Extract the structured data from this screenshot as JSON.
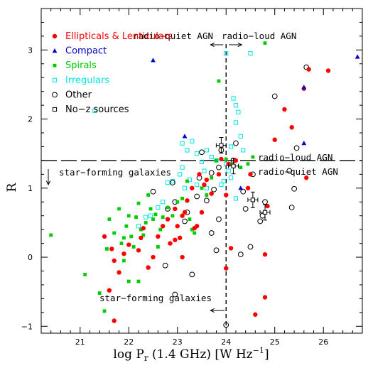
{
  "chart_data": {
    "type": "scatter",
    "title": "",
    "xlabel": "log P",
    "xlabel_sub": "r",
    "xlabel_rest": " (1.4 GHz) [W Hz",
    "xlabel_sup": "−1",
    "xlabel_end": "]",
    "ylabel": "R",
    "xlim": [
      20.2,
      26.8
    ],
    "ylim": [
      -1.1,
      3.6
    ],
    "xticks": [
      "21",
      "22",
      "23",
      "24",
      "25",
      "26"
    ],
    "yticks": [
      "−1",
      "0",
      "1",
      "2",
      "3"
    ],
    "grid": false,
    "legend_position": "top-left",
    "threshold_lines": {
      "x": 24.0,
      "y": 1.4
    },
    "annotations": {
      "top_left": "radio−quiet AGN",
      "top_right": "radio−loud AGN",
      "right_upper": "radio−loud AGN",
      "right_lower": "radio−quiet AGN",
      "left_middle": "star−forming galaxies",
      "bottom": "star−forming galaxies"
    },
    "series": [
      {
        "name": "Ellipticals & Lenticulars",
        "color": "#ff0000",
        "marker": "filled-circle",
        "points": [
          [
            25.7,
            2.72
          ],
          [
            26.1,
            2.7
          ],
          [
            25.6,
            2.44
          ],
          [
            25.2,
            2.14
          ],
          [
            25.35,
            1.88
          ],
          [
            25.0,
            1.7
          ],
          [
            25.65,
            1.15
          ],
          [
            24.5,
            1.2
          ],
          [
            24.45,
            1.0
          ],
          [
            24.2,
            1.4
          ],
          [
            24.05,
            1.35
          ],
          [
            23.9,
            1.42
          ],
          [
            23.85,
            1.2
          ],
          [
            24.0,
            0.9
          ],
          [
            24.85,
            0.74
          ],
          [
            24.8,
            0.04
          ],
          [
            24.8,
            -0.58
          ],
          [
            24.6,
            -0.83
          ],
          [
            24.1,
            0.13
          ],
          [
            24.0,
            -0.16
          ],
          [
            23.55,
            1.05
          ],
          [
            23.45,
            1.2
          ],
          [
            23.3,
            1.0
          ],
          [
            23.2,
            0.82
          ],
          [
            23.1,
            0.6
          ],
          [
            23.0,
            0.45
          ],
          [
            23.05,
            0.28
          ],
          [
            23.1,
            0.0
          ],
          [
            23.15,
            0.65
          ],
          [
            22.95,
            0.25
          ],
          [
            22.85,
            0.2
          ],
          [
            22.7,
            0.45
          ],
          [
            22.6,
            0.3
          ],
          [
            22.5,
            0.0
          ],
          [
            22.4,
            -0.15
          ],
          [
            22.3,
            0.42
          ],
          [
            22.25,
            0.28
          ],
          [
            22.2,
            0.1
          ],
          [
            22.0,
            0.18
          ],
          [
            21.9,
            0.05
          ],
          [
            21.8,
            -0.22
          ],
          [
            21.7,
            -0.05
          ],
          [
            21.6,
            -0.48
          ],
          [
            21.5,
            0.3
          ],
          [
            21.65,
            0.12
          ],
          [
            21.7,
            -0.92
          ],
          [
            22.95,
            0.7
          ],
          [
            23.4,
            0.45
          ],
          [
            23.35,
            0.42
          ],
          [
            23.5,
            0.65
          ],
          [
            23.7,
            0.92
          ],
          [
            23.6,
            1.12
          ],
          [
            22.8,
            0.55
          ]
        ]
      },
      {
        "name": "Compact",
        "color": "#0000cc",
        "marker": "filled-triangle",
        "points": [
          [
            22.5,
            2.85
          ],
          [
            26.7,
            2.9
          ],
          [
            25.6,
            2.46
          ],
          [
            25.6,
            1.65
          ],
          [
            23.15,
            1.75
          ],
          [
            24.3,
            1.0
          ]
        ]
      },
      {
        "name": "Spirals",
        "color": "#00cc00",
        "marker": "filled-square",
        "points": [
          [
            20.4,
            0.32
          ],
          [
            21.1,
            -0.25
          ],
          [
            21.4,
            -0.52
          ],
          [
            21.5,
            -0.78
          ],
          [
            21.55,
            0.12
          ],
          [
            21.6,
            0.55
          ],
          [
            21.7,
            0.35
          ],
          [
            21.8,
            0.7
          ],
          [
            21.85,
            0.2
          ],
          [
            21.9,
            -0.05
          ],
          [
            21.95,
            0.45
          ],
          [
            22.0,
            0.6
          ],
          [
            22.05,
            0.3
          ],
          [
            22.1,
            0.15
          ],
          [
            22.15,
            0.58
          ],
          [
            22.2,
            0.78
          ],
          [
            22.25,
            0.4
          ],
          [
            22.3,
            0.32
          ],
          [
            22.35,
            0.5
          ],
          [
            22.4,
            0.9
          ],
          [
            22.45,
            0.7
          ],
          [
            22.5,
            0.55
          ],
          [
            22.55,
            0.62
          ],
          [
            22.6,
            0.15
          ],
          [
            22.7,
            0.58
          ],
          [
            22.8,
            0.72
          ],
          [
            22.9,
            0.6
          ],
          [
            23.0,
            0.8
          ],
          [
            23.1,
            0.85
          ],
          [
            23.2,
            1.1
          ],
          [
            23.25,
            0.55
          ],
          [
            23.3,
            0.4
          ],
          [
            23.35,
            0.35
          ],
          [
            23.5,
            1.0
          ],
          [
            23.6,
            0.9
          ],
          [
            23.7,
            1.15
          ],
          [
            23.8,
            1.4
          ],
          [
            23.85,
            2.55
          ],
          [
            24.0,
            1.42
          ],
          [
            24.1,
            1.35
          ],
          [
            24.3,
            1.3
          ],
          [
            24.45,
            1.35
          ],
          [
            24.55,
            1.45
          ],
          [
            24.8,
            3.1
          ],
          [
            22.0,
            -0.35
          ],
          [
            22.2,
            -0.35
          ],
          [
            21.9,
            0.28
          ],
          [
            22.65,
            0.4
          ]
        ]
      },
      {
        "name": "Irregulars",
        "color": "#00e5e5",
        "marker": "open-square",
        "points": [
          [
            21.3,
            2.12
          ],
          [
            23.1,
            1.65
          ],
          [
            23.3,
            1.68
          ],
          [
            23.2,
            1.55
          ],
          [
            23.4,
            1.5
          ],
          [
            23.6,
            1.55
          ],
          [
            23.5,
            1.38
          ],
          [
            23.7,
            1.45
          ],
          [
            23.8,
            1.4
          ],
          [
            24.0,
            2.95
          ],
          [
            24.5,
            2.95
          ],
          [
            24.15,
            2.3
          ],
          [
            24.2,
            2.2
          ],
          [
            24.25,
            2.1
          ],
          [
            24.2,
            1.95
          ],
          [
            24.3,
            1.75
          ],
          [
            24.1,
            1.6
          ],
          [
            24.35,
            1.55
          ],
          [
            24.0,
            1.35
          ],
          [
            24.05,
            1.25
          ],
          [
            24.1,
            1.15
          ],
          [
            23.95,
            1.1
          ],
          [
            23.1,
            1.3
          ],
          [
            23.05,
            1.2
          ],
          [
            23.25,
            1.12
          ],
          [
            23.4,
            1.05
          ],
          [
            23.6,
            1.0
          ],
          [
            23.15,
            1.0
          ],
          [
            22.9,
            1.1
          ],
          [
            22.8,
            1.08
          ],
          [
            22.2,
            0.45
          ],
          [
            22.35,
            0.58
          ],
          [
            22.45,
            0.6
          ],
          [
            22.6,
            0.72
          ],
          [
            22.7,
            0.8
          ],
          [
            23.55,
            1.25
          ],
          [
            24.2,
            0.85
          ],
          [
            23.9,
            1.05
          ]
        ]
      },
      {
        "name": "Other",
        "color": "#000000",
        "marker": "open-circle",
        "points": [
          [
            25.65,
            2.75
          ],
          [
            25.0,
            2.33
          ],
          [
            25.45,
            1.58
          ],
          [
            25.3,
            1.25
          ],
          [
            25.4,
            0.99
          ],
          [
            25.35,
            0.72
          ],
          [
            24.8,
            0.8
          ],
          [
            24.75,
            0.6
          ],
          [
            24.7,
            0.52
          ],
          [
            24.55,
            1.2
          ],
          [
            24.35,
            0.95
          ],
          [
            24.4,
            0.7
          ],
          [
            24.5,
            0.15
          ],
          [
            24.3,
            0.04
          ],
          [
            24.15,
            1.4
          ],
          [
            24.2,
            1.65
          ],
          [
            23.9,
            1.55
          ],
          [
            23.85,
            1.3
          ],
          [
            23.7,
            1.22
          ],
          [
            23.75,
            0.98
          ],
          [
            23.6,
            0.82
          ],
          [
            23.85,
            0.55
          ],
          [
            23.7,
            0.35
          ],
          [
            23.8,
            0.1
          ],
          [
            24.0,
            -0.98
          ],
          [
            23.45,
            1.15
          ],
          [
            23.4,
            0.88
          ],
          [
            23.2,
            0.65
          ],
          [
            23.15,
            0.52
          ],
          [
            22.9,
            1.08
          ],
          [
            22.95,
            0.8
          ],
          [
            22.8,
            0.7
          ],
          [
            22.5,
            0.95
          ],
          [
            22.75,
            -0.12
          ],
          [
            22.95,
            -0.54
          ],
          [
            23.3,
            -0.25
          ],
          [
            23.5,
            1.52
          ]
        ]
      },
      {
        "name": "No−z sources",
        "color": "#000000",
        "marker": "open-square-errorbar",
        "points": [
          [
            23.9,
            1.62
          ],
          [
            24.15,
            1.32
          ],
          [
            24.55,
            0.83
          ],
          [
            24.8,
            0.65
          ]
        ]
      }
    ]
  }
}
